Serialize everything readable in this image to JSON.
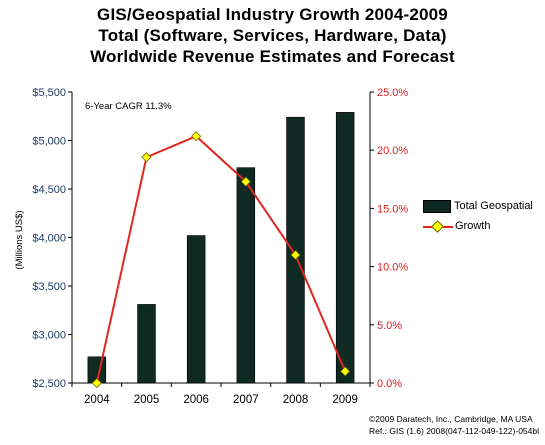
{
  "title_lines": [
    "GIS/Geospatial Industry Growth 2004-2009",
    "Total (Software, Services, Hardware, Data)",
    "Worldwide Revenue Estimates and Forecast"
  ],
  "annotation": "6-Year CAGR 11.3%",
  "footer": {
    "line1": "©2009 Daratech, Inc., Cambridge, MA USA",
    "line2": "Ref.: GIS (1.6) 2008(047-112-049-122)-054bl"
  },
  "colors": {
    "bar": "#0f2a22",
    "line": "#e0261e",
    "marker": "#ffff00",
    "left_axis_text": "#1f3a66",
    "right_axis_text": "#d81e1e"
  },
  "chart_data": {
    "type": "bar",
    "categories": [
      "2004",
      "2005",
      "2006",
      "2007",
      "2008",
      "2009"
    ],
    "ylabel": "(Millions US$)",
    "ylim": [
      2500,
      5500
    ],
    "y_ticks": [
      "$2,500",
      "$3,000",
      "$3,500",
      "$4,000",
      "$4,500",
      "$5,000",
      "$5,500"
    ],
    "y2lim": [
      0.0,
      25.0
    ],
    "y2_ticks": [
      "0.0%",
      "5.0%",
      "10.0%",
      "15.0%",
      "20.0%",
      "25.0%"
    ],
    "grid": false,
    "legend_position": "right",
    "series": [
      {
        "name": "Total Geospatial",
        "type": "bar",
        "axis": "left",
        "values": [
          2770,
          3310,
          4020,
          4720,
          5240,
          5290
        ]
      },
      {
        "name": "Growth",
        "type": "line",
        "axis": "right",
        "values": [
          0.0,
          19.4,
          21.2,
          17.3,
          11.0,
          1.0
        ]
      }
    ]
  }
}
